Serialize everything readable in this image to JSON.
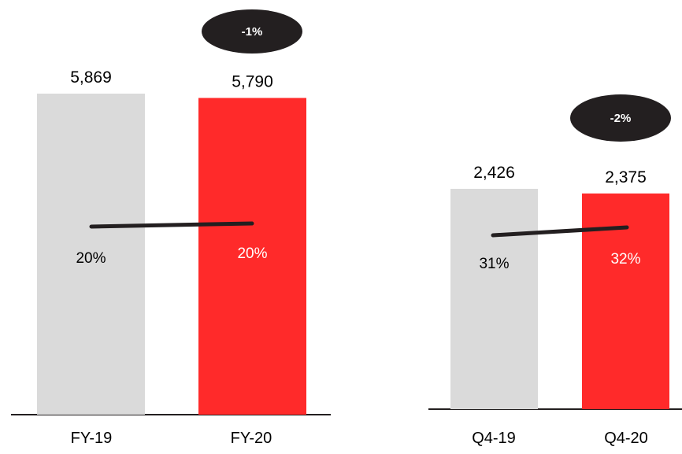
{
  "chart_data": [
    {
      "type": "bar",
      "categories": [
        "FY-19",
        "FY-20"
      ],
      "values": [
        5869,
        5790
      ],
      "value_labels": [
        "5,869",
        "5,790"
      ],
      "line_values": [
        20,
        20
      ],
      "line_labels": [
        "20%",
        "20%"
      ],
      "change_label": "-1%",
      "ylim": [
        0,
        5869
      ],
      "grid": false,
      "legend": "none"
    },
    {
      "type": "bar",
      "categories": [
        "Q4-19",
        "Q4-20"
      ],
      "values": [
        2426,
        2375
      ],
      "value_labels": [
        "2,426",
        "2,375"
      ],
      "line_values": [
        31,
        32
      ],
      "line_labels": [
        "31%",
        "32%"
      ],
      "change_label": "-2%",
      "ylim": [
        0,
        2426
      ],
      "grid": false,
      "legend": "none"
    }
  ],
  "colors": {
    "prior_bar": "#dadada",
    "current_bar": "#ff2a2a",
    "line": "#231f20",
    "badge": "#231f20",
    "axis": "#231f20",
    "pct_on_prior": "#000000",
    "pct_on_current": "#ffffff"
  }
}
